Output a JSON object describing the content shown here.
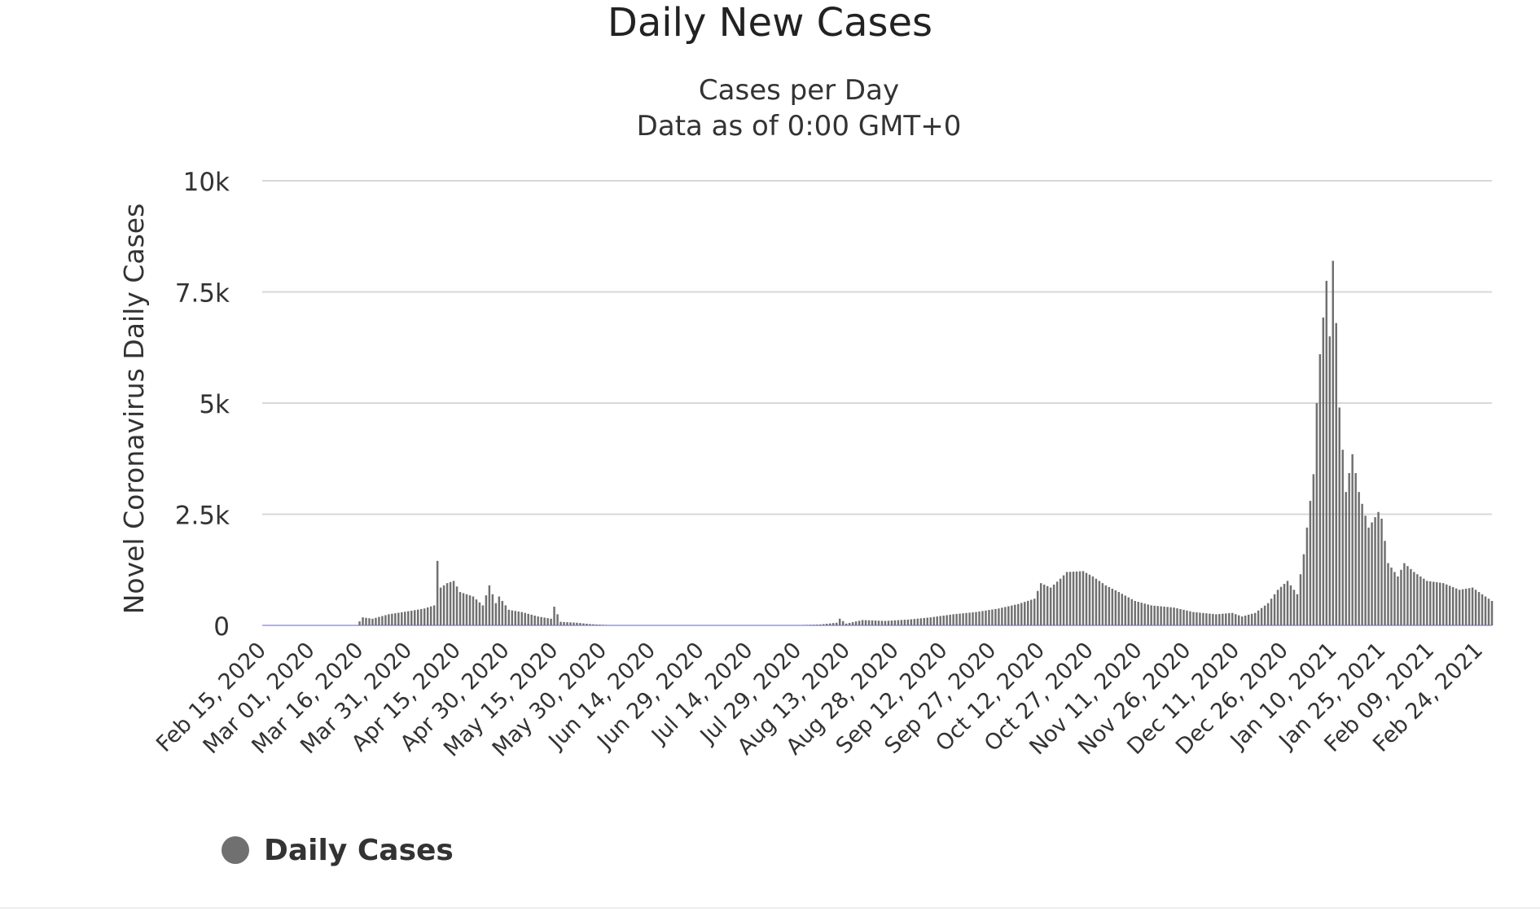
{
  "chart_data": {
    "type": "bar",
    "title": "Daily New Cases",
    "subtitles": [
      "Cases per Day",
      "Data as of 0:00 GMT+0"
    ],
    "ylabel": "Novel Coronavirus Daily Cases",
    "xlabel": "",
    "ylim": [
      0,
      10000
    ],
    "yticks": [
      0,
      2500,
      5000,
      7500,
      10000
    ],
    "ytick_labels": [
      "0",
      "2.5k",
      "5k",
      "7.5k",
      "10k"
    ],
    "x_start": "2020-02-15",
    "x_end": "2021-02-28",
    "xtick_dates": [
      "2020-02-15",
      "2020-03-01",
      "2020-03-16",
      "2020-03-31",
      "2020-04-15",
      "2020-04-30",
      "2020-05-15",
      "2020-05-30",
      "2020-06-14",
      "2020-06-29",
      "2020-07-14",
      "2020-07-29",
      "2020-08-13",
      "2020-08-28",
      "2020-09-12",
      "2020-09-27",
      "2020-10-12",
      "2020-10-27",
      "2020-11-11",
      "2020-11-26",
      "2020-12-11",
      "2020-12-26",
      "2021-01-10",
      "2021-01-25",
      "2021-02-09",
      "2021-02-24"
    ],
    "xtick_labels": [
      "Feb 15, 2020",
      "Mar 01, 2020",
      "Mar 16, 2020",
      "Mar 31, 2020",
      "Apr 15, 2020",
      "Apr 30, 2020",
      "May 15, 2020",
      "May 30, 2020",
      "Jun 14, 2020",
      "Jun 29, 2020",
      "Jul 14, 2020",
      "Jul 29, 2020",
      "Aug 13, 2020",
      "Aug 28, 2020",
      "Sep 12, 2020",
      "Sep 27, 2020",
      "Oct 12, 2020",
      "Oct 27, 2020",
      "Nov 11, 2020",
      "Nov 26, 2020",
      "Dec 11, 2020",
      "Dec 26, 2020",
      "Jan 10, 2021",
      "Jan 25, 2021",
      "Feb 09, 2021",
      "Feb 24, 2021"
    ],
    "grid": true,
    "legend_position": "bottom-left",
    "bar_color": "#707070",
    "grid_color": "#d8d8d8",
    "baseline_color": "#b4b4e0",
    "anchors": [
      [
        "2020-02-15",
        0
      ],
      [
        "2020-03-15",
        0
      ],
      [
        "2020-03-17",
        180
      ],
      [
        "2020-03-20",
        150
      ],
      [
        "2020-03-25",
        250
      ],
      [
        "2020-04-01",
        330
      ],
      [
        "2020-04-05",
        380
      ],
      [
        "2020-04-08",
        450
      ],
      [
        "2020-04-09",
        1450
      ],
      [
        "2020-04-10",
        850
      ],
      [
        "2020-04-12",
        950
      ],
      [
        "2020-04-14",
        1000
      ],
      [
        "2020-04-16",
        750
      ],
      [
        "2020-04-20",
        650
      ],
      [
        "2020-04-23",
        450
      ],
      [
        "2020-04-25",
        900
      ],
      [
        "2020-04-27",
        500
      ],
      [
        "2020-04-28",
        650
      ],
      [
        "2020-05-01",
        350
      ],
      [
        "2020-05-05",
        300
      ],
      [
        "2020-05-10",
        200
      ],
      [
        "2020-05-14",
        150
      ],
      [
        "2020-05-15",
        420
      ],
      [
        "2020-05-17",
        80
      ],
      [
        "2020-05-22",
        60
      ],
      [
        "2020-05-26",
        30
      ],
      [
        "2020-06-01",
        0
      ],
      [
        "2020-07-30",
        0
      ],
      [
        "2020-08-05",
        20
      ],
      [
        "2020-08-10",
        60
      ],
      [
        "2020-08-11",
        150
      ],
      [
        "2020-08-13",
        40
      ],
      [
        "2020-08-18",
        120
      ],
      [
        "2020-08-25",
        100
      ],
      [
        "2020-09-01",
        130
      ],
      [
        "2020-09-08",
        180
      ],
      [
        "2020-09-15",
        250
      ],
      [
        "2020-09-22",
        300
      ],
      [
        "2020-09-29",
        380
      ],
      [
        "2020-10-05",
        480
      ],
      [
        "2020-10-10",
        600
      ],
      [
        "2020-10-12",
        950
      ],
      [
        "2020-10-15",
        850
      ],
      [
        "2020-10-18",
        1050
      ],
      [
        "2020-10-20",
        1200
      ],
      [
        "2020-10-25",
        1220
      ],
      [
        "2020-10-28",
        1100
      ],
      [
        "2020-11-01",
        900
      ],
      [
        "2020-11-05",
        750
      ],
      [
        "2020-11-10",
        550
      ],
      [
        "2020-11-15",
        450
      ],
      [
        "2020-11-22",
        400
      ],
      [
        "2020-11-28",
        300
      ],
      [
        "2020-12-05",
        250
      ],
      [
        "2020-12-10",
        280
      ],
      [
        "2020-12-13",
        200
      ],
      [
        "2020-12-17",
        280
      ],
      [
        "2020-12-21",
        500
      ],
      [
        "2020-12-24",
        800
      ],
      [
        "2020-12-27",
        1000
      ],
      [
        "2020-12-30",
        700
      ],
      [
        "2021-01-01",
        1600
      ],
      [
        "2021-01-04",
        3400
      ],
      [
        "2021-01-05",
        5000
      ],
      [
        "2021-01-06",
        6100
      ],
      [
        "2021-01-08",
        7750
      ],
      [
        "2021-01-09",
        6500
      ],
      [
        "2021-01-10",
        8200
      ],
      [
        "2021-01-11",
        6800
      ],
      [
        "2021-01-12",
        4900
      ],
      [
        "2021-01-14",
        3000
      ],
      [
        "2021-01-16",
        3850
      ],
      [
        "2021-01-18",
        3000
      ],
      [
        "2021-01-21",
        2200
      ],
      [
        "2021-01-24",
        2550
      ],
      [
        "2021-01-25",
        2400
      ],
      [
        "2021-01-27",
        1400
      ],
      [
        "2021-01-30",
        1100
      ],
      [
        "2021-02-01",
        1400
      ],
      [
        "2021-02-04",
        1200
      ],
      [
        "2021-02-08",
        1000
      ],
      [
        "2021-02-13",
        950
      ],
      [
        "2021-02-18",
        800
      ],
      [
        "2021-02-22",
        850
      ],
      [
        "2021-02-25",
        700
      ],
      [
        "2021-02-28",
        550
      ]
    ]
  },
  "legend": {
    "label": "Daily Cases",
    "marker_color": "#707070"
  }
}
